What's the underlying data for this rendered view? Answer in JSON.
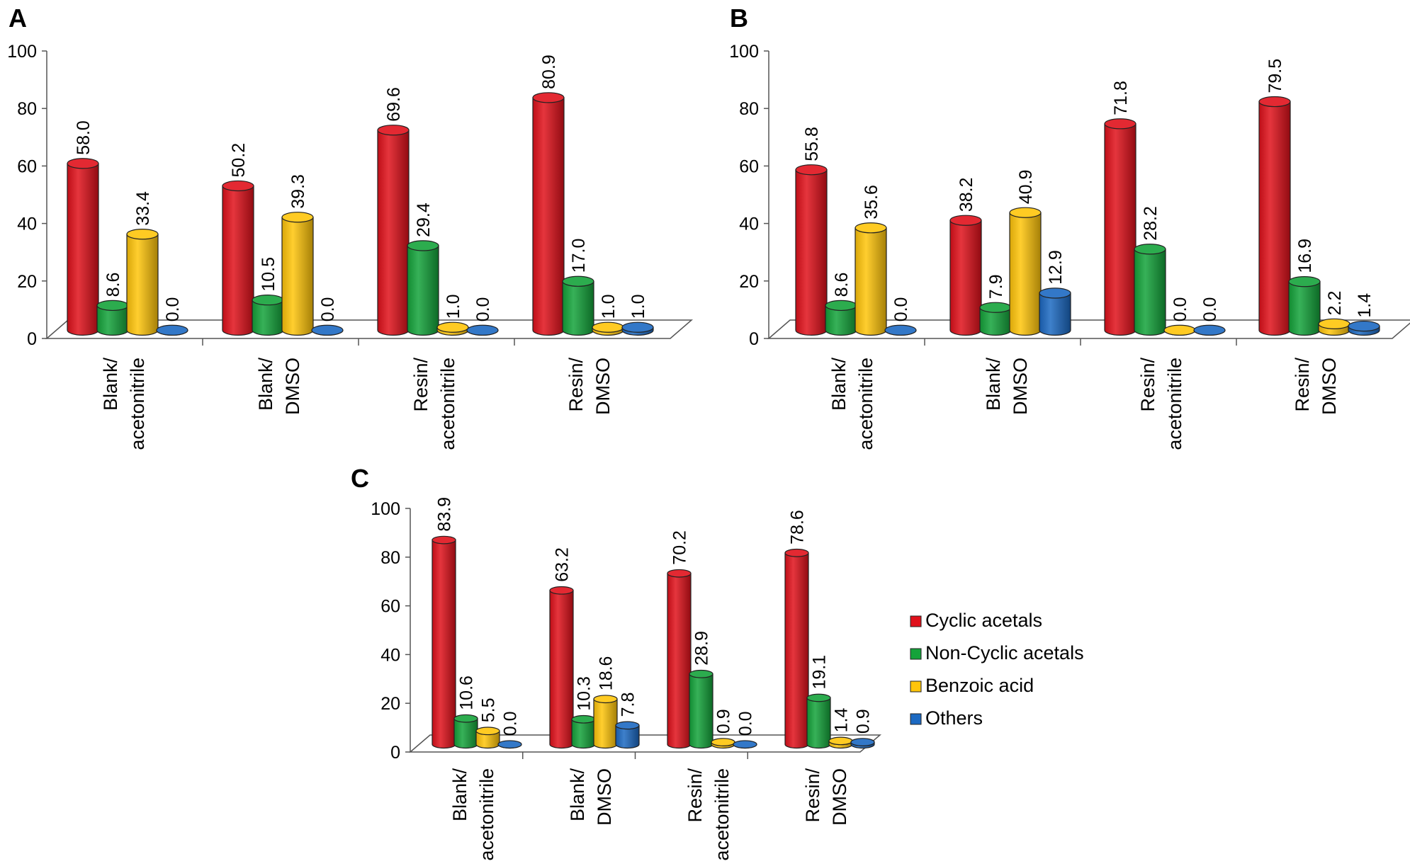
{
  "figure": {
    "legend": [
      {
        "name": "Cyclic acetals",
        "color": "#e0111b"
      },
      {
        "name": "Non-Cyclic acetals",
        "color": "#14a33a"
      },
      {
        "name": "Benzoic acid",
        "color": "#ffc50a"
      },
      {
        "name": "Others",
        "color": "#1c69c2"
      }
    ]
  },
  "chart_data": [
    {
      "panel": "A",
      "type": "bar",
      "categories": [
        [
          "Blank/",
          "acetonitrile"
        ],
        [
          "Blank/",
          "DMSO"
        ],
        [
          "Resin/",
          "acetonitrile"
        ],
        [
          "Resin/",
          "DMSO"
        ]
      ],
      "yticks": [
        "0",
        "20",
        "40",
        "60",
        "80",
        "100"
      ],
      "ylim": [
        0,
        100
      ],
      "series": [
        {
          "name": "Cyclic acetals",
          "values": [
            58.0,
            50.2,
            69.6,
            80.9
          ],
          "labels": [
            "58.0",
            "50.2",
            "69.6",
            "80.9"
          ]
        },
        {
          "name": "Non-Cyclic acetals",
          "values": [
            8.6,
            10.5,
            29.4,
            17.0
          ],
          "labels": [
            "8.6",
            "10.5",
            "29.4",
            "17.0"
          ]
        },
        {
          "name": "Benzoic acid",
          "values": [
            33.4,
            39.3,
            1.0,
            1.0
          ],
          "labels": [
            "33.4",
            "39.3",
            "1.0",
            "1.0"
          ]
        },
        {
          "name": "Others",
          "values": [
            0.0,
            0.0,
            0.0,
            1.0
          ],
          "labels": [
            "0.0",
            "0.0",
            "0.0",
            "1.0"
          ]
        }
      ]
    },
    {
      "panel": "B",
      "type": "bar",
      "categories": [
        [
          "Blank/",
          "acetonitrile"
        ],
        [
          "Blank/",
          "DMSO"
        ],
        [
          "Resin/",
          "acetonitrile"
        ],
        [
          "Resin/",
          "DMSO"
        ]
      ],
      "yticks": [
        "0",
        "20",
        "40",
        "60",
        "80",
        "100"
      ],
      "ylim": [
        0,
        100
      ],
      "series": [
        {
          "name": "Cyclic acetals",
          "values": [
            55.8,
            38.2,
            71.8,
            79.5
          ],
          "labels": [
            "55.8",
            "38.2",
            "71.8",
            "79.5"
          ]
        },
        {
          "name": "Non-Cyclic acetals",
          "values": [
            8.6,
            7.9,
            28.2,
            16.9
          ],
          "labels": [
            "8.6",
            "7.9",
            "28.2",
            "16.9"
          ]
        },
        {
          "name": "Benzoic acid",
          "values": [
            35.6,
            40.9,
            0.0,
            2.2
          ],
          "labels": [
            "35.6",
            "40.9",
            "0.0",
            "2.2"
          ]
        },
        {
          "name": "Others",
          "values": [
            0.0,
            12.9,
            0.0,
            1.4
          ],
          "labels": [
            "0.0",
            "12.9",
            "0.0",
            "1.4"
          ]
        }
      ]
    },
    {
      "panel": "C",
      "type": "bar",
      "categories": [
        [
          "Blank/",
          "acetonitrile"
        ],
        [
          "Blank/",
          "DMSO"
        ],
        [
          "Resin/",
          "acetonitrile"
        ],
        [
          "Resin/",
          "DMSO"
        ]
      ],
      "yticks": [
        "0",
        "20",
        "40",
        "60",
        "80",
        "100"
      ],
      "ylim": [
        0,
        100
      ],
      "series": [
        {
          "name": "Cyclic acetals",
          "values": [
            83.9,
            63.2,
            70.2,
            78.6
          ],
          "labels": [
            "83.9",
            "63.2",
            "70.2",
            "78.6"
          ]
        },
        {
          "name": "Non-Cyclic acetals",
          "values": [
            10.6,
            10.3,
            28.9,
            19.1
          ],
          "labels": [
            "10.6",
            "10.3",
            "28.9",
            "19.1"
          ]
        },
        {
          "name": "Benzoic acid",
          "values": [
            5.5,
            18.6,
            0.9,
            1.4
          ],
          "labels": [
            "5.5",
            "18.6",
            "0.9",
            "1.4"
          ]
        },
        {
          "name": "Others",
          "values": [
            0.0,
            7.8,
            0.0,
            0.9
          ],
          "labels": [
            "0.0",
            "7.8",
            "0.0",
            "0.9"
          ]
        }
      ]
    }
  ]
}
